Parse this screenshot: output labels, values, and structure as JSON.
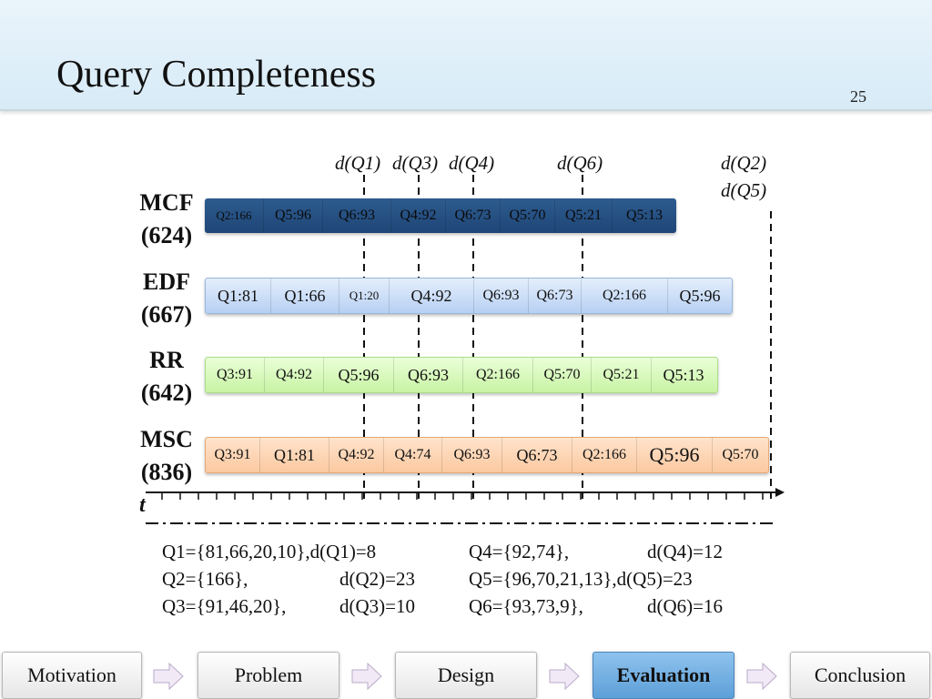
{
  "slide": {
    "title": "Query Completeness",
    "page_number": "25"
  },
  "diagram": {
    "deadlines": [
      "d(Q1)",
      "d(Q3)",
      "d(Q4)",
      "d(Q6)",
      "d(Q2)",
      "d(Q5)"
    ],
    "axis_label": "t",
    "schemes": [
      {
        "name": "MCF",
        "total": "(624)",
        "chunks": [
          "Q2:166",
          "Q5:96",
          "Q6:93",
          "Q4:92",
          "Q6:73",
          "Q5:70",
          "Q5:21",
          "Q5:13"
        ]
      },
      {
        "name": "EDF",
        "total": "(667)",
        "chunks": [
          "Q1:81",
          "Q1:66",
          "Q1:20",
          "Q4:92",
          "Q6:93",
          "Q6:73",
          "Q2:166",
          "Q5:96"
        ]
      },
      {
        "name": "RR",
        "total": "(642)",
        "chunks": [
          "Q3:91",
          "Q4:92",
          "Q5:96",
          "Q6:93",
          "Q2:166",
          "Q5:70",
          "Q5:21",
          "Q5:13"
        ]
      },
      {
        "name": "MSC",
        "total": "(836)",
        "chunks": [
          "Q3:91",
          "Q1:81",
          "Q4:92",
          "Q4:74",
          "Q6:93",
          "Q6:73",
          "Q2:166",
          "Q5:96",
          "Q5:70"
        ]
      }
    ],
    "query_definitions": [
      [
        "Q1={81,66,20,10},d(Q1)=8",
        "Q4={92,74},",
        "d(Q4)=12"
      ],
      [
        "Q2={166},",
        "d(Q2)=23",
        "Q5={96,70,21,13},d(Q5)=23"
      ],
      [
        "Q3={91,46,20},",
        "d(Q3)=10",
        "Q6={93,73,9},",
        "d(Q6)=16"
      ]
    ]
  },
  "nav": {
    "items": [
      "Motivation",
      "Problem",
      "Design",
      "Evaluation",
      "Conclusion"
    ],
    "active": "Evaluation"
  },
  "colors": {
    "mcf": "#2d5b8e",
    "edf": "#c7dbf7",
    "rr": "#d8f9bd",
    "msc": "#fcd2ad",
    "active_nav": "#6fb0e3"
  }
}
